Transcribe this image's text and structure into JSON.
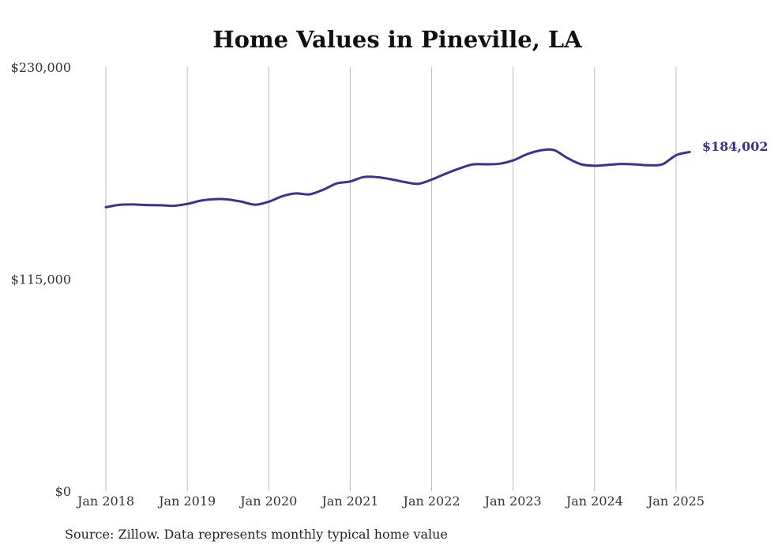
{
  "chart_data": {
    "type": "line",
    "title": "Home Values in Pineville, LA",
    "xlabel": "",
    "ylabel": "",
    "ylim": [
      0,
      230000
    ],
    "y_ticks": [
      {
        "value": 0,
        "label": "$0"
      },
      {
        "value": 115000,
        "label": "$115,000"
      },
      {
        "value": 230000,
        "label": "$230,000"
      }
    ],
    "x_ticks": [
      "Jan 2018",
      "Jan 2019",
      "Jan 2020",
      "Jan 2021",
      "Jan 2022",
      "Jan 2023",
      "Jan 2024",
      "Jan 2025"
    ],
    "grid": "vertical",
    "line_color": "#3b3192",
    "end_label": "$184,002",
    "series": [
      {
        "x": [
          "2018-01",
          "2018-03",
          "2018-05",
          "2018-07",
          "2018-09",
          "2018-11",
          "2019-01",
          "2019-03",
          "2019-05",
          "2019-07",
          "2019-09",
          "2019-11",
          "2020-01",
          "2020-03",
          "2020-05",
          "2020-07",
          "2020-09",
          "2020-11",
          "2021-01",
          "2021-03",
          "2021-05",
          "2021-07",
          "2021-09",
          "2021-11",
          "2022-01",
          "2022-03",
          "2022-05",
          "2022-07",
          "2022-09",
          "2022-11",
          "2023-01",
          "2023-03",
          "2023-05",
          "2023-07",
          "2023-09",
          "2023-11",
          "2024-01",
          "2024-03",
          "2024-05",
          "2024-07",
          "2024-09",
          "2024-11",
          "2025-01",
          "2025-03"
        ],
        "values": [
          154000,
          155300,
          155500,
          155200,
          155100,
          154800,
          155800,
          157600,
          158400,
          158200,
          157000,
          155400,
          157000,
          160000,
          161500,
          161000,
          163500,
          166900,
          168000,
          170400,
          170300,
          169200,
          167700,
          166700,
          169000,
          172100,
          174900,
          177200,
          177300,
          177600,
          179400,
          182700,
          184800,
          185000,
          180700,
          177300,
          176500,
          177000,
          177500,
          177200,
          176800,
          177300,
          182200,
          184002
        ]
      }
    ]
  },
  "source": "Source: Zillow. Data represents monthly typical home value"
}
